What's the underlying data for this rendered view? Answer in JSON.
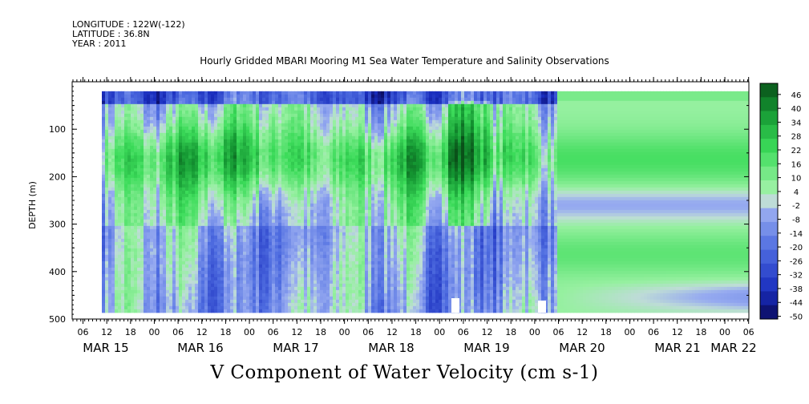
{
  "header": {
    "longitude": "LONGITUDE : 122W(-122)",
    "latitude": "LATITUDE : 36.8N",
    "year": "YEAR : 2011"
  },
  "chart_data": {
    "type": "heatmap",
    "title": "Hourly Gridded MBARI Mooring M1 Sea Water Temperature and Salinity Observations",
    "xlabel": "V Component of Water Velocity (cm s-1)",
    "ylabel": "DEPTH (m)",
    "ylim": [
      500,
      0
    ],
    "yticks": [
      100,
      200,
      300,
      400,
      500
    ],
    "x_hour_ticks": [
      "06",
      "12",
      "18",
      "00",
      "06",
      "12",
      "18",
      "00",
      "06",
      "12",
      "18",
      "00",
      "06",
      "12",
      "18",
      "00",
      "06",
      "12",
      "18",
      "00",
      "06",
      "12",
      "18",
      "00",
      "06",
      "12",
      "18",
      "00",
      "06",
      "12",
      "18",
      "00"
    ],
    "x_day_labels": [
      "MAR 15",
      "MAR 16",
      "MAR 17",
      "MAR 18",
      "MAR 19",
      "MAR 20",
      "MAR 21",
      "MAR 22"
    ],
    "colorbar_labels": [
      "46",
      "40",
      "34",
      "28",
      "22",
      "16",
      "10",
      "4",
      "-2",
      "-8",
      "-14",
      "-20",
      "-26",
      "-32",
      "-38",
      "-44",
      "-50"
    ],
    "colorbar_range": [
      -50,
      50
    ],
    "data_depth_range": [
      20,
      485
    ],
    "grid": false
  }
}
